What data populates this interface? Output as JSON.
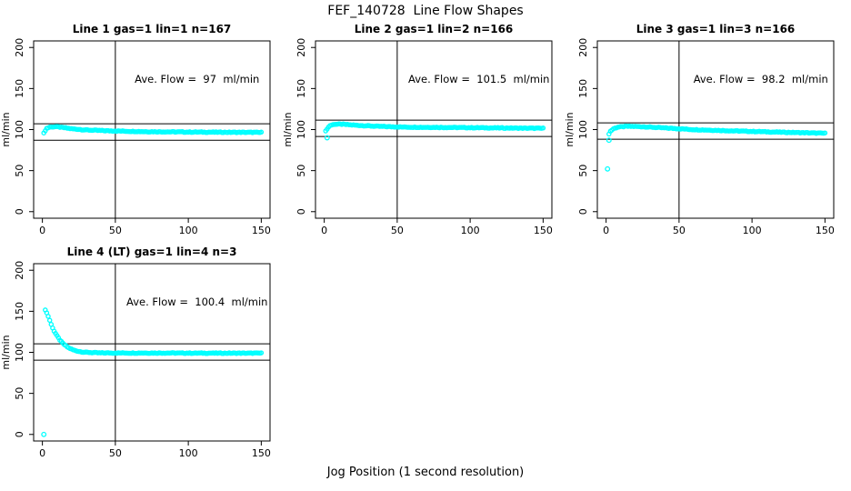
{
  "page": {
    "title": "FEF_140728  Line Flow Shapes",
    "xlabel": "Jog Position (1 second resolution)",
    "background": "#ffffff",
    "axis_color": "#000000"
  },
  "chart_data": [
    {
      "type": "scatter",
      "title": "Line 1 gas=1 lin=1 n=167",
      "annotation": "Ave. Flow =  97  ml/min",
      "ave_flow": 97,
      "ylabel": "ml/min",
      "xlim": [
        0,
        150
      ],
      "ylim": [
        0,
        200
      ],
      "x_ticks": [
        0,
        50,
        100,
        150
      ],
      "y_ticks": [
        0,
        50,
        100,
        150,
        200
      ],
      "vline_x": 50,
      "hlines": [
        107,
        87
      ],
      "marker_color": "#00FFFF",
      "x_range": [
        1,
        150
      ],
      "series_keypoints": [
        [
          1,
          95.5
        ],
        [
          2,
          99
        ],
        [
          3,
          101.5
        ],
        [
          5,
          103
        ],
        [
          9,
          103.5
        ],
        [
          14,
          102.5
        ],
        [
          20,
          101
        ],
        [
          30,
          99.5
        ],
        [
          45,
          98.5
        ],
        [
          70,
          97.5
        ],
        [
          100,
          97
        ],
        [
          150,
          96.5
        ]
      ],
      "outliers": []
    },
    {
      "type": "scatter",
      "title": "Line 2 gas=1 lin=2 n=166",
      "annotation": "Ave. Flow =  101.5  ml/min",
      "ave_flow": 101.5,
      "ylabel": "ml/min",
      "xlim": [
        0,
        150
      ],
      "ylim": [
        0,
        200
      ],
      "x_ticks": [
        0,
        50,
        100,
        150
      ],
      "y_ticks": [
        0,
        50,
        100,
        150,
        200
      ],
      "vline_x": 50,
      "hlines": [
        111.5,
        91.5
      ],
      "marker_color": "#00FFFF",
      "x_range": [
        1,
        150
      ],
      "series_keypoints": [
        [
          1,
          98
        ],
        [
          2,
          101
        ],
        [
          4,
          105
        ],
        [
          7,
          106.5
        ],
        [
          12,
          106.5
        ],
        [
          20,
          105.5
        ],
        [
          35,
          104
        ],
        [
          55,
          103
        ],
        [
          90,
          102.5
        ],
        [
          150,
          101.5
        ]
      ],
      "outliers": [
        [
          2,
          90
        ]
      ]
    },
    {
      "type": "scatter",
      "title": "Line 3 gas=1 lin=3 n=166",
      "annotation": "Ave. Flow =  98.2  ml/min",
      "ave_flow": 98.2,
      "ylabel": "ml/min",
      "xlim": [
        0,
        150
      ],
      "ylim": [
        0,
        200
      ],
      "x_ticks": [
        0,
        50,
        100,
        150
      ],
      "y_ticks": [
        0,
        50,
        100,
        150,
        200
      ],
      "vline_x": 50,
      "hlines": [
        108.2,
        88.2
      ],
      "marker_color": "#00FFFF",
      "x_range": [
        2,
        150
      ],
      "series_keypoints": [
        [
          2,
          95
        ],
        [
          3,
          98
        ],
        [
          5,
          101
        ],
        [
          8,
          103
        ],
        [
          14,
          104
        ],
        [
          25,
          103.5
        ],
        [
          40,
          102
        ],
        [
          60,
          100
        ],
        [
          85,
          98.5
        ],
        [
          115,
          97
        ],
        [
          150,
          95.5
        ]
      ],
      "outliers": [
        [
          1,
          52
        ],
        [
          2,
          87
        ]
      ]
    },
    {
      "type": "scatter",
      "title": "Line 4 (LT) gas=1 lin=4 n=3",
      "annotation": "Ave. Flow =  100.4  ml/min",
      "ave_flow": 100.4,
      "ylabel": "ml/min",
      "xlim": [
        0,
        150
      ],
      "ylim": [
        0,
        200
      ],
      "x_ticks": [
        0,
        50,
        100,
        150
      ],
      "y_ticks": [
        0,
        50,
        100,
        150,
        200
      ],
      "vline_x": 50,
      "hlines": [
        110.4,
        90.4
      ],
      "marker_color": "#00FFFF",
      "x_range": [
        2,
        150
      ],
      "series_keypoints": [
        [
          2,
          152
        ],
        [
          3,
          148
        ],
        [
          4,
          144
        ],
        [
          5,
          139
        ],
        [
          6,
          134
        ],
        [
          7,
          130
        ],
        [
          8,
          126
        ],
        [
          10,
          120
        ],
        [
          12,
          115
        ],
        [
          14,
          111
        ],
        [
          16,
          108
        ],
        [
          18,
          105.5
        ],
        [
          21,
          103
        ],
        [
          24,
          101.5
        ],
        [
          28,
          100.3
        ],
        [
          33,
          99.7
        ],
        [
          40,
          99.3
        ],
        [
          55,
          99.2
        ],
        [
          80,
          99.2
        ],
        [
          110,
          99
        ],
        [
          150,
          99
        ]
      ],
      "outliers": [
        [
          1,
          0
        ]
      ]
    }
  ]
}
